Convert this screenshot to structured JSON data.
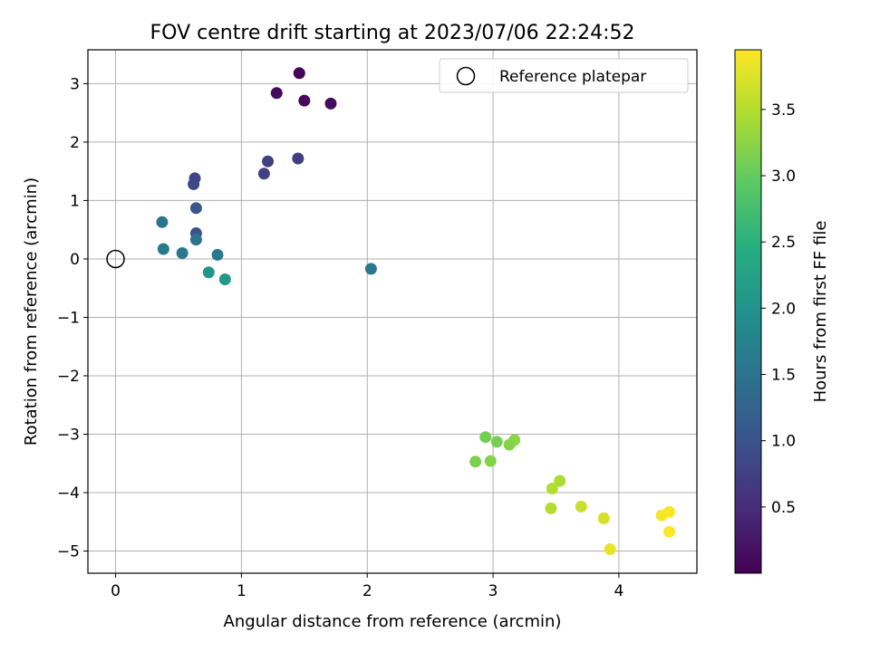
{
  "chart_data": {
    "type": "scatter",
    "title": "FOV centre drift starting at 2023/07/06 22:24:52",
    "xlabel": "Angular distance from reference (arcmin)",
    "ylabel": "Rotation from reference (arcmin)",
    "xlim": [
      -0.22,
      4.62
    ],
    "ylim": [
      -5.38,
      3.58
    ],
    "xticks": [
      0,
      1,
      2,
      3,
      4
    ],
    "yticks": [
      -5,
      -4,
      -3,
      -2,
      -1,
      0,
      1,
      2,
      3
    ],
    "grid": true,
    "legend": {
      "position": "top-right",
      "entries": [
        "Reference platepar"
      ]
    },
    "reference_point": {
      "x": 0,
      "y": 0,
      "label": "Reference platepar"
    },
    "colorbar": {
      "label": "Hours from first FF file",
      "colormap": "viridis",
      "range": [
        0.0,
        3.95
      ],
      "ticks": [
        0.5,
        1.0,
        1.5,
        2.0,
        2.5,
        3.0,
        3.5
      ]
    },
    "points": [
      {
        "x": 1.46,
        "y": 3.18,
        "hours": 0.02
      },
      {
        "x": 1.28,
        "y": 2.84,
        "hours": 0.12
      },
      {
        "x": 1.5,
        "y": 2.71,
        "hours": 0.1
      },
      {
        "x": 1.71,
        "y": 2.66,
        "hours": 0.13
      },
      {
        "x": 1.45,
        "y": 1.72,
        "hours": 0.72
      },
      {
        "x": 1.21,
        "y": 1.67,
        "hours": 0.75
      },
      {
        "x": 1.18,
        "y": 1.46,
        "hours": 0.78
      },
      {
        "x": 0.63,
        "y": 1.38,
        "hours": 0.82
      },
      {
        "x": 0.62,
        "y": 1.28,
        "hours": 0.85
      },
      {
        "x": 0.64,
        "y": 0.87,
        "hours": 1.05
      },
      {
        "x": 0.64,
        "y": 0.44,
        "hours": 1.0
      },
      {
        "x": 0.64,
        "y": 0.33,
        "hours": 1.5
      },
      {
        "x": 0.37,
        "y": 0.63,
        "hours": 1.55
      },
      {
        "x": 0.38,
        "y": 0.17,
        "hours": 1.6
      },
      {
        "x": 0.53,
        "y": 0.1,
        "hours": 1.58
      },
      {
        "x": 0.81,
        "y": 0.07,
        "hours": 1.6
      },
      {
        "x": 2.03,
        "y": -0.17,
        "hours": 1.58
      },
      {
        "x": 0.74,
        "y": -0.23,
        "hours": 2.05
      },
      {
        "x": 0.87,
        "y": -0.35,
        "hours": 2.1
      },
      {
        "x": 2.94,
        "y": -3.05,
        "hours": 3.1
      },
      {
        "x": 3.03,
        "y": -3.13,
        "hours": 3.12
      },
      {
        "x": 3.17,
        "y": -3.1,
        "hours": 3.25
      },
      {
        "x": 3.13,
        "y": -3.18,
        "hours": 3.22
      },
      {
        "x": 2.86,
        "y": -3.47,
        "hours": 3.15
      },
      {
        "x": 2.98,
        "y": -3.46,
        "hours": 3.2
      },
      {
        "x": 3.53,
        "y": -3.8,
        "hours": 3.45
      },
      {
        "x": 3.47,
        "y": -3.93,
        "hours": 3.48
      },
      {
        "x": 3.46,
        "y": -4.27,
        "hours": 3.5
      },
      {
        "x": 3.7,
        "y": -4.24,
        "hours": 3.62
      },
      {
        "x": 3.88,
        "y": -4.44,
        "hours": 3.7
      },
      {
        "x": 3.93,
        "y": -4.97,
        "hours": 3.8
      },
      {
        "x": 4.34,
        "y": -4.39,
        "hours": 3.9
      },
      {
        "x": 4.4,
        "y": -4.33,
        "hours": 3.92
      },
      {
        "x": 4.4,
        "y": -4.67,
        "hours": 3.95
      }
    ]
  }
}
